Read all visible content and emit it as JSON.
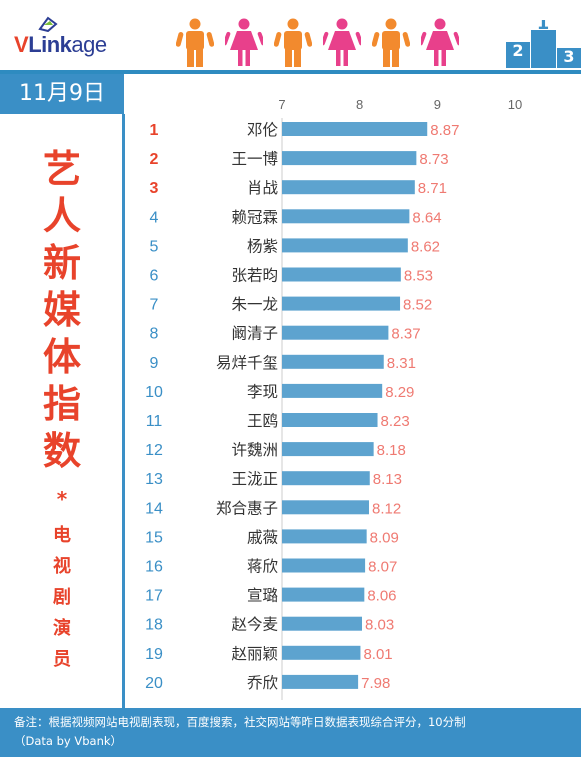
{
  "header": {
    "logo": {
      "v": "V",
      "link": "Link",
      "age": "age"
    },
    "people_icons": [
      "male-figure-icon",
      "female-figure-icon",
      "male-figure-icon",
      "female-figure-icon",
      "male-figure-icon",
      "female-figure-icon"
    ],
    "podium": {
      "first": "1",
      "second": "2",
      "third": "3"
    }
  },
  "date": "11月9日",
  "title_chars": [
    "艺",
    "人",
    "新",
    "媒",
    "体",
    "指",
    "数"
  ],
  "asterisk": "*",
  "subtitle_chars": [
    "电",
    "视",
    "剧",
    "演",
    "员"
  ],
  "footer": {
    "note": "备注：根据视频网站电视剧表现，百度搜索，社交网站等昨日数据表现综合评分，10分制",
    "source": "（Data by Vbank）"
  },
  "colors": {
    "accent_blue": "#3a8fc6",
    "bar": "#5da3cf",
    "rank_top": "#e8432b",
    "rank_rest": "#3a8fc6",
    "value_label": "#ef7a72",
    "male": "#f28a2e",
    "female": "#e8408b"
  },
  "chart_data": {
    "type": "bar",
    "orientation": "horizontal",
    "title": "",
    "xlabel": "",
    "ylabel": "",
    "xlim": [
      7,
      10
    ],
    "x_ticks": [
      "7",
      "8",
      "9",
      "10"
    ],
    "grid": false,
    "ranks": [
      "1",
      "2",
      "3",
      "4",
      "5",
      "6",
      "7",
      "8",
      "9",
      "10",
      "11",
      "12",
      "13",
      "14",
      "15",
      "16",
      "17",
      "18",
      "19",
      "20"
    ],
    "categories": [
      "邓伦",
      "王一博",
      "肖战",
      "赖冠霖",
      "杨紫",
      "张若昀",
      "朱一龙",
      "阚清子",
      "易烊千玺",
      "李现",
      "王鸥",
      "许魏洲",
      "王泷正",
      "郑合惠子",
      "戚薇",
      "蒋欣",
      "宣璐",
      "赵今麦",
      "赵丽颖",
      "乔欣"
    ],
    "values": [
      8.87,
      8.73,
      8.71,
      8.64,
      8.62,
      8.53,
      8.52,
      8.37,
      8.31,
      8.29,
      8.23,
      8.18,
      8.13,
      8.12,
      8.09,
      8.07,
      8.06,
      8.03,
      8.01,
      7.98
    ],
    "value_labels": [
      "8.87",
      "8.73",
      "8.71",
      "8.64",
      "8.62",
      "8.53",
      "8.52",
      "8.37",
      "8.31",
      "8.29",
      "8.23",
      "8.18",
      "8.13",
      "8.12",
      "8.09",
      "8.07",
      "8.06",
      "8.03",
      "8.01",
      "7.98"
    ]
  }
}
